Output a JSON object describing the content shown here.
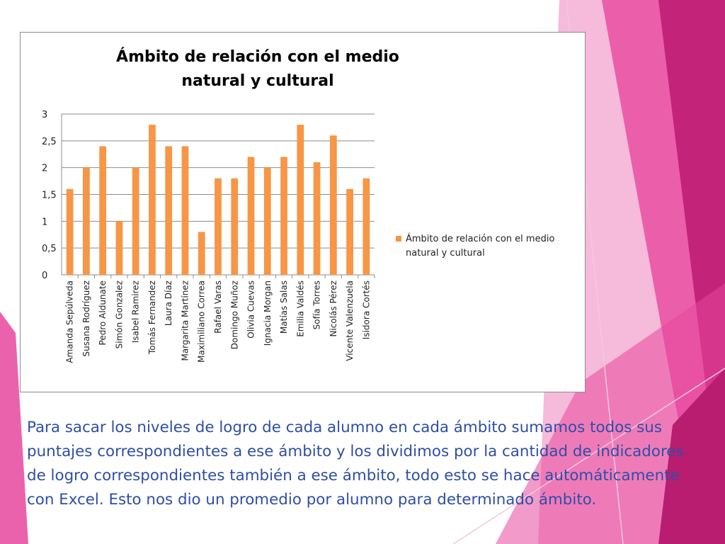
{
  "colors": {
    "bar": "#f79646",
    "text_blue": "#2e4ea6",
    "accent_magenta": "#c4237a",
    "accent_pink": "#e8479d",
    "accent_light_pink": "#f3a3cd"
  },
  "chart_data": {
    "type": "bar",
    "title": "Ámbito de relación con el medio natural y cultural",
    "categories": [
      "Amanda Sepúlveda",
      "Susana Rodríguez",
      "Pedro Aldunate",
      "Simón Gonzalez",
      "Isabel Ramirez",
      "Tomás Fernandez",
      "Laura Díaz",
      "Margarita Martínez",
      "Maximiliano Correa",
      "Rafael Varas",
      "Domingo Muñoz",
      "Olivia Cuevas",
      "Ignacia Morgan",
      "Matías Salas",
      "Emilia Valdés",
      "Sofía Torres",
      "Nicolás Pérez",
      "Vicente Valenzuela",
      "Isidora Cortés"
    ],
    "series": [
      {
        "name": "Ámbito de relación con el medio natural y cultural",
        "values": [
          1.6,
          2,
          2.4,
          1,
          2,
          2.8,
          2.4,
          2.4,
          0.8,
          1.8,
          1.8,
          2.2,
          2,
          2.2,
          2.8,
          2.1,
          2.6,
          1.6,
          1.8
        ]
      }
    ],
    "yticks": [
      "0",
      "0,5",
      "1",
      "1,5",
      "2",
      "2,5",
      "3"
    ],
    "ylim": [
      0,
      3
    ],
    "grid": true,
    "legend_position": "right",
    "xlabel": "",
    "ylabel": ""
  },
  "body_text": "Para sacar los niveles de logro de cada alumno en cada ámbito sumamos todos sus puntajes correspondientes a ese ámbito y los dividimos por la cantidad de indicadores de logro correspondientes también a ese ámbito, todo esto se hace automáticamente con Excel.  Esto nos dio un promedio por alumno para determinado ámbito."
}
